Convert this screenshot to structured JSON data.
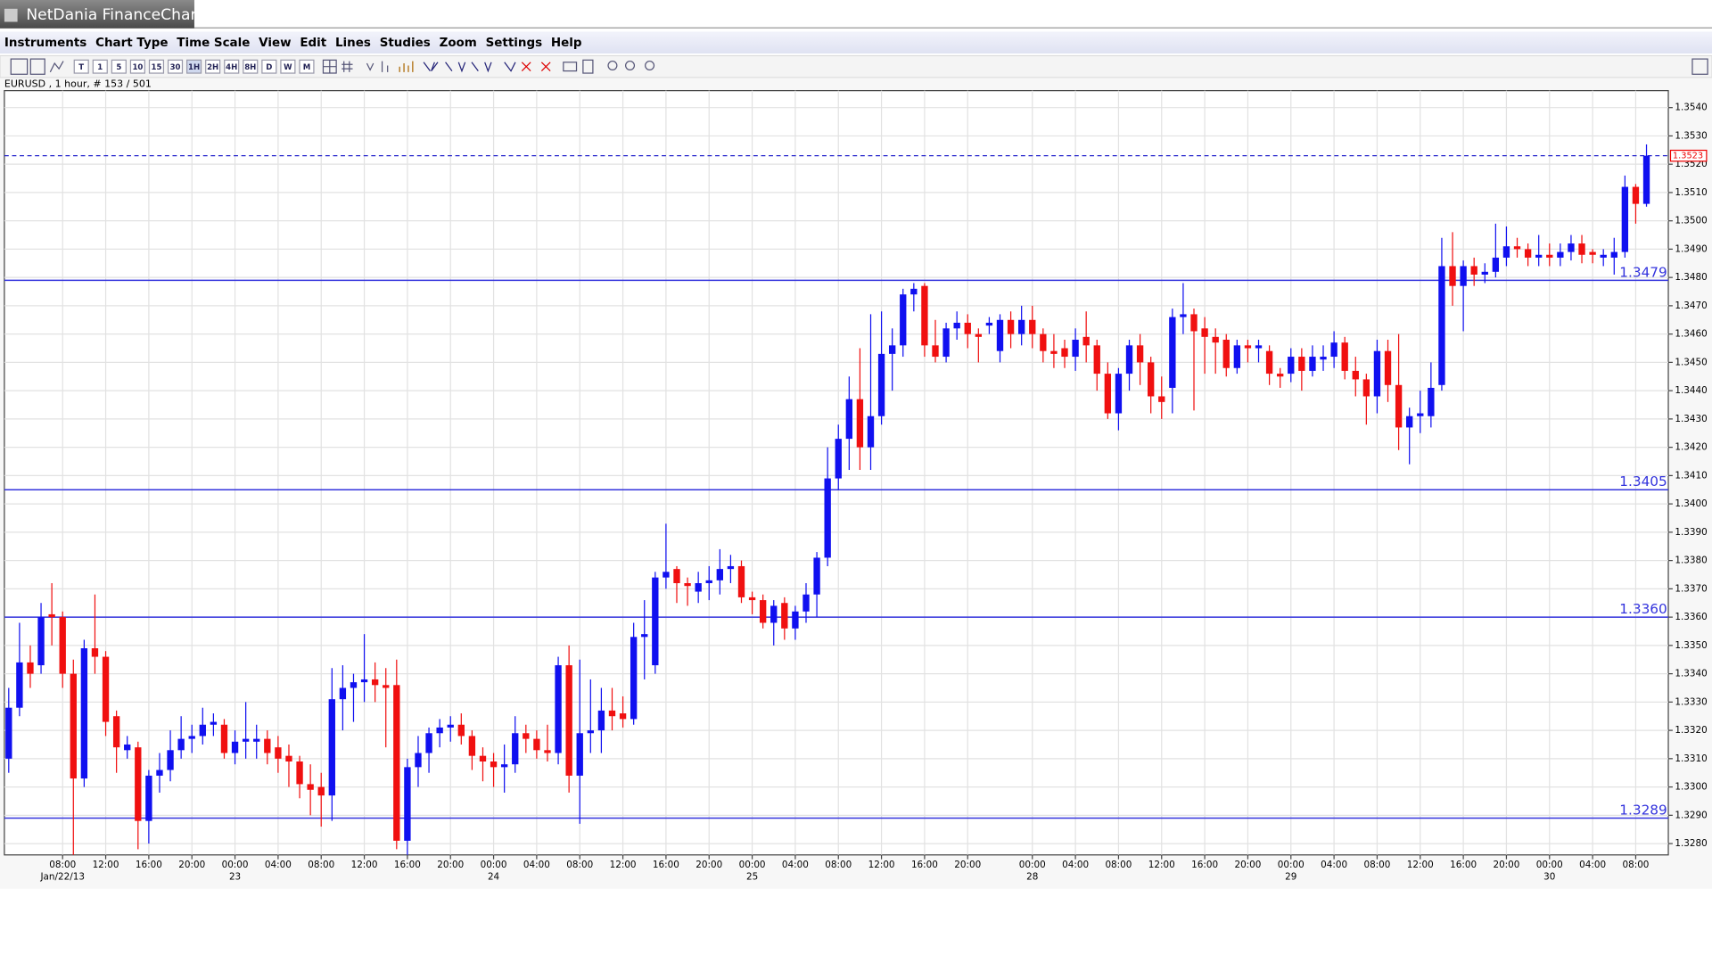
{
  "window_title": "NetDania FinanceChart",
  "menu": [
    "Instruments",
    "Chart Type",
    "Time Scale",
    "View",
    "Edit",
    "Lines",
    "Studies",
    "Zoom",
    "Settings",
    "Help"
  ],
  "toolbar": [
    "T",
    "1",
    "5",
    "10",
    "15",
    "30",
    "1H",
    "2H",
    "4H",
    "8H",
    "D",
    "W",
    "M"
  ],
  "chart_data": {
    "type": "candlestick",
    "info": "EURUSD , 1 hour, # 153 / 501",
    "up_color": "#1010f0",
    "down_color": "#f01010",
    "grid": true,
    "ylim": [
      1.3276,
      1.3546
    ],
    "yticks": [
      {
        "value": 1.328,
        "label": "1.3280"
      },
      {
        "value": 1.329,
        "label": "1.3290"
      },
      {
        "value": 1.33,
        "label": "1.3300"
      },
      {
        "value": 1.331,
        "label": "1.3310"
      },
      {
        "value": 1.332,
        "label": "1.3320"
      },
      {
        "value": 1.333,
        "label": "1.3330"
      },
      {
        "value": 1.334,
        "label": "1.3340"
      },
      {
        "value": 1.335,
        "label": "1.3350"
      },
      {
        "value": 1.336,
        "label": "1.3360"
      },
      {
        "value": 1.337,
        "label": "1.3370"
      },
      {
        "value": 1.338,
        "label": "1.3380"
      },
      {
        "value": 1.339,
        "label": "1.3390"
      },
      {
        "value": 1.34,
        "label": "1.3400"
      },
      {
        "value": 1.341,
        "label": "1.3410"
      },
      {
        "value": 1.342,
        "label": "1.3420"
      },
      {
        "value": 1.343,
        "label": "1.3430"
      },
      {
        "value": 1.344,
        "label": "1.3440"
      },
      {
        "value": 1.345,
        "label": "1.3450"
      },
      {
        "value": 1.346,
        "label": "1.3460"
      },
      {
        "value": 1.347,
        "label": "1.3470"
      },
      {
        "value": 1.348,
        "label": "1.3480"
      },
      {
        "value": 1.349,
        "label": "1.3490"
      },
      {
        "value": 1.35,
        "label": "1.3500"
      },
      {
        "value": 1.351,
        "label": "1.3510"
      },
      {
        "value": 1.352,
        "label": "1.3520"
      },
      {
        "value": 1.353,
        "label": "1.3530"
      },
      {
        "value": 1.354,
        "label": "1.3540"
      }
    ],
    "levels": [
      1.3479,
      1.3405,
      {
        "value": 1.336,
        "label": "1.3360"
      },
      1.3289
    ],
    "level_color": "#3333dd",
    "last_price": 1.3523,
    "categories": [
      null,
      null,
      null,
      null,
      null,
      "08:00",
      null,
      null,
      null,
      "12:00",
      null,
      null,
      null,
      "16:00",
      null,
      null,
      null,
      "20:00",
      null,
      null,
      null,
      "00:00",
      null,
      null,
      null,
      "04:00",
      null,
      null,
      null,
      "08:00",
      null,
      null,
      null,
      "12:00",
      null,
      null,
      null,
      "16:00",
      null,
      null,
      null,
      "20:00",
      null,
      null,
      null,
      "00:00",
      null,
      null,
      null,
      "04:00",
      null,
      null,
      null,
      "08:00",
      null,
      null,
      null,
      "12:00",
      null,
      null,
      null,
      "16:00",
      null,
      null,
      null,
      "20:00",
      null,
      null,
      null,
      "00:00",
      null,
      null,
      null,
      "04:00",
      null,
      null,
      null,
      "08:00",
      null,
      null,
      null,
      "12:00",
      null,
      null,
      null,
      "16:00",
      null,
      null,
      null,
      "20:00",
      null,
      null,
      null,
      null,
      null,
      "00:00",
      null,
      null,
      null,
      "04:00",
      null,
      null,
      null,
      "08:00",
      null,
      null,
      null,
      "12:00",
      null,
      null,
      null,
      "16:00",
      null,
      null,
      null,
      "20:00",
      null,
      null,
      null,
      "00:00",
      null,
      null,
      null,
      "04:00",
      null,
      null,
      null,
      "08:00",
      null,
      null,
      null,
      "12:00",
      null,
      null,
      null,
      "16:00",
      null,
      null,
      null,
      "20:00",
      null,
      null,
      null,
      "00:00",
      null,
      null,
      null,
      "04:00",
      null,
      null,
      null,
      "08:00",
      null
    ],
    "dates": [
      null,
      null,
      null,
      null,
      null,
      "Jan/22/13",
      null,
      null,
      null,
      null,
      null,
      null,
      null,
      null,
      null,
      null,
      null,
      null,
      null,
      null,
      null,
      "23",
      null,
      null,
      null,
      null,
      null,
      null,
      null,
      null,
      null,
      null,
      null,
      null,
      null,
      null,
      null,
      null,
      null,
      null,
      null,
      null,
      null,
      null,
      null,
      "24",
      null,
      null,
      null,
      null,
      null,
      null,
      null,
      null,
      null,
      null,
      null,
      null,
      null,
      null,
      null,
      null,
      null,
      null,
      null,
      null,
      null,
      null,
      null,
      "25",
      null,
      null,
      null,
      null,
      null,
      null,
      null,
      null,
      null,
      null,
      null,
      null,
      null,
      null,
      null,
      null,
      null,
      null,
      null,
      null,
      null,
      null,
      null,
      null,
      null,
      "28",
      null,
      null,
      null,
      null,
      null,
      null,
      null,
      null,
      null,
      null,
      null,
      null,
      null,
      null,
      null,
      null,
      null,
      null,
      null,
      null,
      null,
      null,
      null,
      "29",
      null,
      null,
      null,
      null,
      null,
      null,
      null,
      null,
      null,
      null,
      null,
      null,
      null,
      null,
      null,
      null,
      null,
      null,
      null,
      null,
      null,
      null,
      null,
      "30",
      null,
      null,
      null,
      null,
      null,
      null,
      null,
      null,
      null
    ],
    "ohlc": [
      [
        1.331,
        1.3335,
        1.3305,
        1.3328
      ],
      [
        1.3328,
        1.3358,
        1.3325,
        1.3344
      ],
      [
        1.3344,
        1.335,
        1.3335,
        1.334
      ],
      [
        1.3343,
        1.3365,
        1.334,
        1.336
      ],
      [
        1.3361,
        1.3372,
        1.335,
        1.336
      ],
      [
        1.336,
        1.3362,
        1.3335,
        1.334
      ],
      [
        1.334,
        1.3345,
        1.3276,
        1.3303
      ],
      [
        1.3303,
        1.3352,
        1.33,
        1.3349
      ],
      [
        1.3349,
        1.3368,
        1.334,
        1.3346
      ],
      [
        1.3346,
        1.3348,
        1.3318,
        1.3323
      ],
      [
        1.3325,
        1.3327,
        1.3305,
        1.3314
      ],
      [
        1.3313,
        1.3318,
        1.331,
        1.3315
      ],
      [
        1.3314,
        1.3316,
        1.3278,
        1.3288
      ],
      [
        1.3288,
        1.3306,
        1.328,
        1.3304
      ],
      [
        1.3304,
        1.3312,
        1.3298,
        1.3306
      ],
      [
        1.3306,
        1.332,
        1.3302,
        1.3313
      ],
      [
        1.3313,
        1.3325,
        1.331,
        1.3317
      ],
      [
        1.3317,
        1.3322,
        1.3312,
        1.3318
      ],
      [
        1.3318,
        1.3328,
        1.3315,
        1.3322
      ],
      [
        1.3322,
        1.3326,
        1.3318,
        1.3323
      ],
      [
        1.3322,
        1.3324,
        1.331,
        1.3312
      ],
      [
        1.3312,
        1.332,
        1.3308,
        1.3316
      ],
      [
        1.3316,
        1.333,
        1.331,
        1.3317
      ],
      [
        1.3316,
        1.3322,
        1.331,
        1.3317
      ],
      [
        1.3317,
        1.332,
        1.3308,
        1.3312
      ],
      [
        1.3314,
        1.3318,
        1.3305,
        1.331
      ],
      [
        1.3311,
        1.3315,
        1.33,
        1.3309
      ],
      [
        1.3309,
        1.3311,
        1.3296,
        1.3301
      ],
      [
        1.3301,
        1.3308,
        1.329,
        1.3299
      ],
      [
        1.33,
        1.3305,
        1.3286,
        1.3297
      ],
      [
        1.3297,
        1.3342,
        1.3288,
        1.3331
      ],
      [
        1.3331,
        1.3343,
        1.332,
        1.3335
      ],
      [
        1.3335,
        1.334,
        1.3323,
        1.3337
      ],
      [
        1.3337,
        1.3354,
        1.333,
        1.3338
      ],
      [
        1.3338,
        1.3344,
        1.333,
        1.3336
      ],
      [
        1.3336,
        1.3342,
        1.3314,
        1.3335
      ],
      [
        1.3336,
        1.3345,
        1.3278,
        1.3281
      ],
      [
        1.3281,
        1.331,
        1.3276,
        1.3307
      ],
      [
        1.3307,
        1.3318,
        1.33,
        1.3312
      ],
      [
        1.3312,
        1.3321,
        1.3305,
        1.3319
      ],
      [
        1.3319,
        1.3324,
        1.3314,
        1.3321
      ],
      [
        1.3321,
        1.3325,
        1.3316,
        1.3322
      ],
      [
        1.3322,
        1.3326,
        1.3315,
        1.3318
      ],
      [
        1.3318,
        1.332,
        1.3306,
        1.3311
      ],
      [
        1.3311,
        1.3314,
        1.3302,
        1.3309
      ],
      [
        1.3309,
        1.3312,
        1.33,
        1.3307
      ],
      [
        1.3307,
        1.3315,
        1.3298,
        1.3308
      ],
      [
        1.3308,
        1.3325,
        1.3305,
        1.3319
      ],
      [
        1.3319,
        1.3322,
        1.3312,
        1.3317
      ],
      [
        1.3317,
        1.332,
        1.331,
        1.3313
      ],
      [
        1.3313,
        1.3322,
        1.3309,
        1.3312
      ],
      [
        1.3312,
        1.3346,
        1.3308,
        1.3343
      ],
      [
        1.3343,
        1.335,
        1.3298,
        1.3304
      ],
      [
        1.3304,
        1.3345,
        1.3287,
        1.3319
      ],
      [
        1.3319,
        1.3338,
        1.3312,
        1.332
      ],
      [
        1.332,
        1.3335,
        1.3312,
        1.3327
      ],
      [
        1.3327,
        1.3335,
        1.332,
        1.3325
      ],
      [
        1.3326,
        1.3332,
        1.3321,
        1.3324
      ],
      [
        1.3324,
        1.3358,
        1.3322,
        1.3353
      ],
      [
        1.3353,
        1.3366,
        1.3338,
        1.3354
      ],
      [
        1.3343,
        1.3376,
        1.334,
        1.3374
      ],
      [
        1.3374,
        1.3393,
        1.337,
        1.3376
      ],
      [
        1.3377,
        1.3378,
        1.3365,
        1.3372
      ],
      [
        1.3372,
        1.3374,
        1.3364,
        1.3371
      ],
      [
        1.3369,
        1.3376,
        1.3365,
        1.3372
      ],
      [
        1.3372,
        1.3378,
        1.3366,
        1.3373
      ],
      [
        1.3373,
        1.3384,
        1.3368,
        1.3377
      ],
      [
        1.3377,
        1.3382,
        1.3372,
        1.3378
      ],
      [
        1.3378,
        1.338,
        1.3365,
        1.3367
      ],
      [
        1.3367,
        1.3369,
        1.3361,
        1.3366
      ],
      [
        1.3366,
        1.3368,
        1.3356,
        1.3358
      ],
      [
        1.3358,
        1.3366,
        1.335,
        1.3364
      ],
      [
        1.3365,
        1.3367,
        1.3352,
        1.3356
      ],
      [
        1.3356,
        1.3364,
        1.3352,
        1.3362
      ],
      [
        1.3362,
        1.3372,
        1.3358,
        1.3368
      ],
      [
        1.3368,
        1.3383,
        1.336,
        1.3381
      ],
      [
        1.3381,
        1.342,
        1.3378,
        1.3409
      ],
      [
        1.3409,
        1.3428,
        1.3405,
        1.3423
      ],
      [
        1.3423,
        1.3445,
        1.3412,
        1.3437
      ],
      [
        1.3437,
        1.3455,
        1.3412,
        1.342
      ],
      [
        1.342,
        1.3467,
        1.3412,
        1.3431
      ],
      [
        1.3431,
        1.3468,
        1.3428,
        1.3453
      ],
      [
        1.3453,
        1.3462,
        1.344,
        1.3456
      ],
      [
        1.3456,
        1.3476,
        1.3452,
        1.3474
      ],
      [
        1.3474,
        1.3478,
        1.3468,
        1.3476
      ],
      [
        1.3477,
        1.3478,
        1.3452,
        1.3456
      ],
      [
        1.3456,
        1.3465,
        1.345,
        1.3452
      ],
      [
        1.3452,
        1.3464,
        1.345,
        1.3462
      ],
      [
        1.3462,
        1.3468,
        1.3458,
        1.3464
      ],
      [
        1.3464,
        1.3467,
        1.3455,
        1.346
      ],
      [
        1.346,
        1.3462,
        1.345,
        1.3459
      ],
      [
        1.3463,
        1.3466,
        1.346,
        1.3464
      ],
      [
        1.3454,
        1.3467,
        1.345,
        1.3465
      ],
      [
        1.3465,
        1.3468,
        1.3455,
        1.346
      ],
      [
        1.346,
        1.347,
        1.3456,
        1.3465
      ],
      [
        1.3465,
        1.347,
        1.3455,
        1.346
      ],
      [
        1.346,
        1.3462,
        1.345,
        1.3454
      ],
      [
        1.3454,
        1.346,
        1.3448,
        1.3453
      ],
      [
        1.3455,
        1.3458,
        1.3448,
        1.3452
      ],
      [
        1.3452,
        1.3462,
        1.3447,
        1.3458
      ],
      [
        1.3459,
        1.3468,
        1.345,
        1.3456
      ],
      [
        1.3456,
        1.3458,
        1.344,
        1.3446
      ],
      [
        1.3446,
        1.345,
        1.343,
        1.3432
      ],
      [
        1.3432,
        1.3448,
        1.3426,
        1.3446
      ],
      [
        1.3446,
        1.3458,
        1.344,
        1.3456
      ],
      [
        1.3456,
        1.346,
        1.3442,
        1.345
      ],
      [
        1.345,
        1.3452,
        1.3432,
        1.3438
      ],
      [
        1.3438,
        1.3445,
        1.343,
        1.3436
      ],
      [
        1.3441,
        1.3469,
        1.3432,
        1.3466
      ],
      [
        1.3466,
        1.3478,
        1.346,
        1.3467
      ],
      [
        1.3467,
        1.3469,
        1.3433,
        1.3461
      ],
      [
        1.3462,
        1.3466,
        1.3446,
        1.3459
      ],
      [
        1.3459,
        1.3462,
        1.3446,
        1.3457
      ],
      [
        1.3458,
        1.346,
        1.3445,
        1.3448
      ],
      [
        1.3448,
        1.3458,
        1.3446,
        1.3456
      ],
      [
        1.3456,
        1.3458,
        1.345,
        1.3455
      ],
      [
        1.3455,
        1.3458,
        1.345,
        1.3456
      ],
      [
        1.3454,
        1.3456,
        1.3442,
        1.3446
      ],
      [
        1.3446,
        1.3448,
        1.3441,
        1.3445
      ],
      [
        1.3446,
        1.3455,
        1.3443,
        1.3452
      ],
      [
        1.3452,
        1.3455,
        1.344,
        1.3447
      ],
      [
        1.3447,
        1.3456,
        1.3445,
        1.3452
      ],
      [
        1.3451,
        1.3456,
        1.3447,
        1.3452
      ],
      [
        1.3452,
        1.3461,
        1.3448,
        1.3457
      ],
      [
        1.3457,
        1.3459,
        1.3444,
        1.3447
      ],
      [
        1.3447,
        1.3452,
        1.3438,
        1.3444
      ],
      [
        1.3444,
        1.3446,
        1.3428,
        1.3438
      ],
      [
        1.3438,
        1.3458,
        1.3432,
        1.3454
      ],
      [
        1.3454,
        1.3458,
        1.3436,
        1.3442
      ],
      [
        1.3442,
        1.346,
        1.3419,
        1.3427
      ],
      [
        1.3427,
        1.3434,
        1.3414,
        1.3431
      ],
      [
        1.3431,
        1.344,
        1.3425,
        1.3432
      ],
      [
        1.3431,
        1.345,
        1.3427,
        1.3441
      ],
      [
        1.3442,
        1.3494,
        1.344,
        1.3484
      ],
      [
        1.3484,
        1.3496,
        1.347,
        1.3477
      ],
      [
        1.3477,
        1.3486,
        1.3461,
        1.3484
      ],
      [
        1.3484,
        1.3487,
        1.3477,
        1.3481
      ],
      [
        1.3481,
        1.3485,
        1.3478,
        1.3482
      ],
      [
        1.3482,
        1.3499,
        1.348,
        1.3487
      ],
      [
        1.3487,
        1.3498,
        1.3484,
        1.3491
      ],
      [
        1.3491,
        1.3494,
        1.3487,
        1.349
      ],
      [
        1.349,
        1.3492,
        1.3484,
        1.3487
      ],
      [
        1.3487,
        1.3495,
        1.3484,
        1.3488
      ],
      [
        1.3488,
        1.3492,
        1.3484,
        1.3487
      ],
      [
        1.3487,
        1.3492,
        1.3484,
        1.3489
      ],
      [
        1.3489,
        1.3495,
        1.3486,
        1.3492
      ],
      [
        1.3492,
        1.3495,
        1.3485,
        1.3488
      ],
      [
        1.3489,
        1.349,
        1.3485,
        1.3488
      ],
      [
        1.3487,
        1.349,
        1.3484,
        1.3488
      ],
      [
        1.3487,
        1.3494,
        1.3481,
        1.3489
      ],
      [
        1.3489,
        1.3516,
        1.3487,
        1.3512
      ],
      [
        1.3512,
        1.3513,
        1.3499,
        1.3506
      ],
      [
        1.3506,
        1.3527,
        1.3505,
        1.3523
      ]
    ]
  }
}
